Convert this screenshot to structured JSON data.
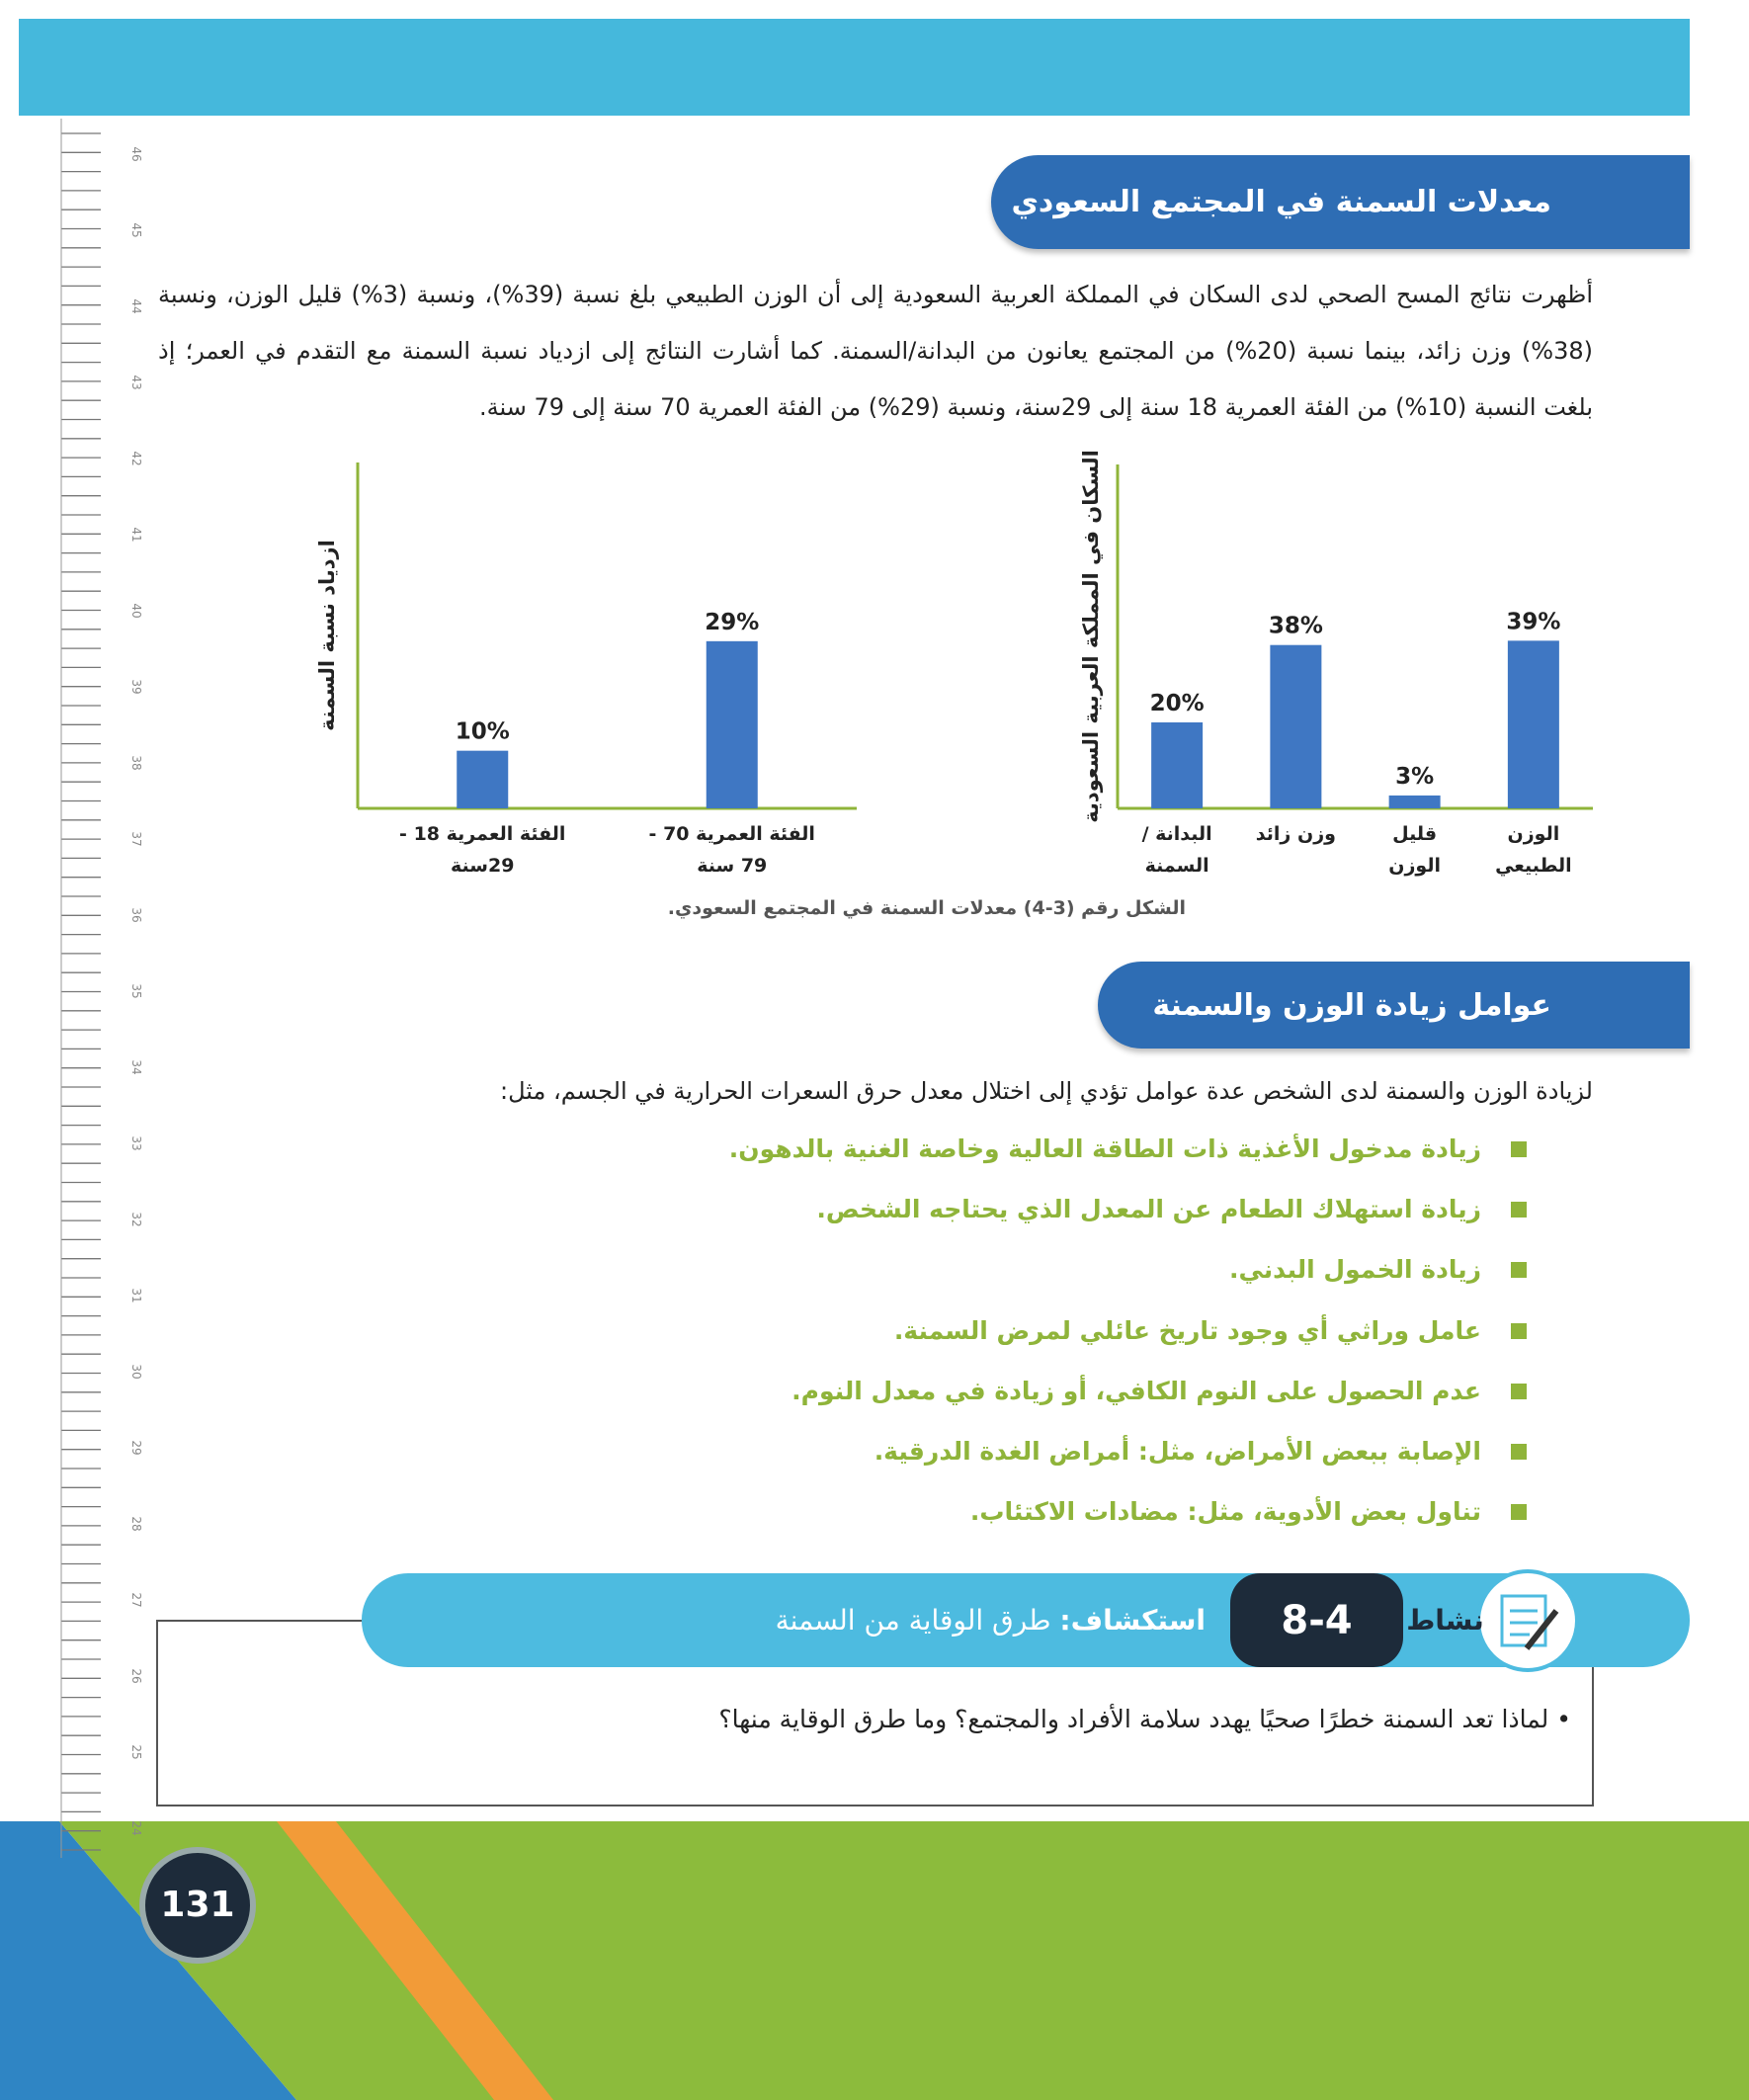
{
  "ruler": [
    "46",
    "45",
    "44",
    "43",
    "42",
    "41",
    "40",
    "39",
    "38",
    "37",
    "36",
    "35",
    "34",
    "33",
    "32",
    "31",
    "30",
    "29",
    "28",
    "27",
    "26",
    "25",
    "24"
  ],
  "section_1": {
    "title": "معدلات السمنة في المجتمع السعودي",
    "paragraph": "أظهرت نتائج المسح الصحي لدى السكان في المملكة العربية السعودية إلى أن الوزن الطبيعي بلغ نسبة (39%)، ونسبة (3%) قليل الوزن، ونسبة (38%) وزن زائد، بينما نسبة (20%) من المجتمع يعانون من البدانة/السمنة. كما أشارت النتائج إلى ازدياد نسبة السمنة مع التقدم في العمر؛ إذ بلغت النسبة (10%) من الفئة العمرية 18 سنة إلى 29سنة، ونسبة (29%) من الفئة العمرية 70 سنة إلى 79 سنة."
  },
  "chart_data": [
    {
      "type": "bar",
      "y_label": "السكان في المملكة العربية السعودية",
      "categories": [
        "الوزن الطبيعي",
        "قليل الوزن",
        "وزن زائد",
        "البدانة / السمنة"
      ],
      "values": [
        39,
        3,
        38,
        20
      ],
      "value_labels": [
        "39%",
        "3%",
        "38%",
        "20%"
      ],
      "color": "#3f77c3",
      "ylim": [
        0,
        80
      ]
    },
    {
      "type": "bar",
      "y_label": "ازدياد نسبة السمنة",
      "categories": [
        "الفئة العمرية 70 - 79 سنة",
        "الفئة العمرية 18 - 29سنة"
      ],
      "values": [
        29,
        10
      ],
      "value_labels": [
        "29%",
        "10%"
      ],
      "color": "#3f77c3",
      "ylim": [
        0,
        60
      ]
    }
  ],
  "figure_caption": "الشكل رقم (3-4) معدلات السمنة في المجتمع السعودي.",
  "section_2": {
    "title": "عوامل زيادة الوزن والسمنة",
    "intro": "لزيادة الوزن والسمنة لدى الشخص عدة عوامل تؤدي إلى اختلال معدل حرق السعرات الحرارية في الجسم، مثل:",
    "bullets": [
      "زيادة مدخول الأغذية ذات الطاقة العالية وخاصة الغنية بالدهون.",
      "زيادة استهلاك الطعام عن المعدل الذي يحتاجه الشخص.",
      "زيادة الخمول البدني.",
      "عامل وراثي أي وجود تاريخ عائلي لمرض السمنة.",
      "عدم الحصول على النوم الكافي، أو زيادة في معدل النوم.",
      "الإصابة ببعض الأمراض، مثل: أمراض الغدة الدرقية.",
      "تناول بعض الأدوية، مثل: مضادات الاكتئاب."
    ]
  },
  "activity": {
    "label": "نشاط",
    "number": "8-4",
    "kind": "استكشاف:",
    "title": "طرق الوقاية من السمنة",
    "question": "لماذا تعد السمنة خطرًا صحيًا يهدد سلامة الأفراد والمجتمع؟ وما طرق الوقاية منها؟"
  },
  "page_number": "131"
}
